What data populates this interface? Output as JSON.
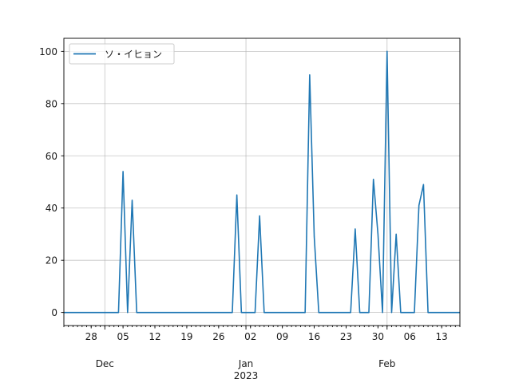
{
  "chart_data": {
    "type": "line",
    "title": "",
    "xlabel": "",
    "ylabel": "",
    "grid": true,
    "legend_position": "upper-left",
    "xlim": [
      "2022-11-22",
      "2023-02-17"
    ],
    "ylim": [
      -5,
      105
    ],
    "y_ticks": [
      0,
      20,
      40,
      60,
      80,
      100
    ],
    "x_major_ticks": [
      {
        "date": "2022-11-28",
        "label": "28"
      },
      {
        "date": "2022-12-05",
        "label": "05"
      },
      {
        "date": "2022-12-12",
        "label": "12"
      },
      {
        "date": "2022-12-19",
        "label": "19"
      },
      {
        "date": "2022-12-26",
        "label": "26"
      },
      {
        "date": "2023-01-02",
        "label": "02"
      },
      {
        "date": "2023-01-09",
        "label": "09"
      },
      {
        "date": "2023-01-16",
        "label": "16"
      },
      {
        "date": "2023-01-23",
        "label": "23"
      },
      {
        "date": "2023-01-30",
        "label": "30"
      },
      {
        "date": "2023-02-06",
        "label": "06"
      },
      {
        "date": "2023-02-13",
        "label": "13"
      }
    ],
    "x_month_labels": [
      {
        "date": "2022-12-01",
        "label": "Dec"
      },
      {
        "date": "2023-01-01",
        "label": "Jan"
      },
      {
        "date": "2023-02-01",
        "label": "Feb"
      }
    ],
    "x_year_labels": [
      {
        "date": "2023-01-01",
        "label": "2023"
      }
    ],
    "series": [
      {
        "name": "ソ・イヒョン",
        "color": "#1f77b4",
        "points": [
          [
            "2022-11-22",
            0
          ],
          [
            "2022-12-04",
            0
          ],
          [
            "2022-12-05",
            54
          ],
          [
            "2022-12-06",
            0
          ],
          [
            "2022-12-07",
            43
          ],
          [
            "2022-12-08",
            0
          ],
          [
            "2022-12-29",
            0
          ],
          [
            "2022-12-30",
            45
          ],
          [
            "2022-12-31",
            0
          ],
          [
            "2023-01-03",
            0
          ],
          [
            "2023-01-04",
            37
          ],
          [
            "2023-01-05",
            0
          ],
          [
            "2023-01-14",
            0
          ],
          [
            "2023-01-15",
            91
          ],
          [
            "2023-01-16",
            29
          ],
          [
            "2023-01-17",
            0
          ],
          [
            "2023-01-24",
            0
          ],
          [
            "2023-01-25",
            32
          ],
          [
            "2023-01-26",
            0
          ],
          [
            "2023-01-28",
            0
          ],
          [
            "2023-01-29",
            51
          ],
          [
            "2023-01-30",
            30
          ],
          [
            "2023-01-31",
            0
          ],
          [
            "2023-02-01",
            100
          ],
          [
            "2023-02-02",
            0
          ],
          [
            "2023-02-03",
            30
          ],
          [
            "2023-02-04",
            0
          ],
          [
            "2023-02-07",
            0
          ],
          [
            "2023-02-08",
            41
          ],
          [
            "2023-02-09",
            49
          ],
          [
            "2023-02-10",
            0
          ],
          [
            "2023-02-17",
            0
          ]
        ]
      }
    ]
  }
}
